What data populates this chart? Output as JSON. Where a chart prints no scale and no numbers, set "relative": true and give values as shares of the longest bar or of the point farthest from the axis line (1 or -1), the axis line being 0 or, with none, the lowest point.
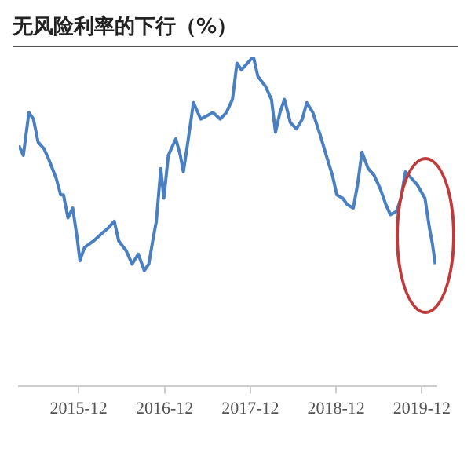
{
  "chart_data": {
    "type": "line",
    "title": "无风险利率的下行（%）",
    "relative": true,
    "x": [
      "2015-03-22",
      "2015-04-10",
      "2015-05-04",
      "2015-05-23",
      "2015-06-12",
      "2015-07-07",
      "2015-07-26",
      "2015-08-28",
      "2015-09-16",
      "2015-09-28",
      "2015-10-17",
      "2015-11-06",
      "2015-11-25",
      "2015-12-07",
      "2015-12-26",
      "2016-02-03",
      "2016-03-05",
      "2016-04-06",
      "2016-05-01",
      "2016-05-20",
      "2016-06-21",
      "2016-07-16",
      "2016-08-11",
      "2016-09-06",
      "2016-09-25",
      "2016-10-14",
      "2016-10-27",
      "2016-11-15",
      "2016-11-28",
      "2016-12-17",
      "2017-01-18",
      "2017-02-06",
      "2017-02-19",
      "2017-03-08",
      "2017-04-03",
      "2017-05-04",
      "2017-05-30",
      "2017-06-25",
      "2017-07-26",
      "2017-08-21",
      "2017-09-16",
      "2017-10-05",
      "2017-10-24",
      "2017-11-19",
      "2017-12-14",
      "2018-01-02",
      "2018-02-03",
      "2018-03-01",
      "2018-03-18",
      "2018-04-06",
      "2018-04-25",
      "2018-05-20",
      "2018-06-15",
      "2018-07-10",
      "2018-07-29",
      "2018-08-24",
      "2018-09-25",
      "2018-10-20",
      "2018-11-15",
      "2018-12-04",
      "2018-12-29",
      "2019-01-18",
      "2019-02-12",
      "2019-03-02",
      "2019-03-21",
      "2019-04-16",
      "2019-05-11",
      "2019-06-06",
      "2019-07-01",
      "2019-07-20",
      "2019-08-15",
      "2019-09-03",
      "2019-09-22",
      "2019-10-18",
      "2019-11-12",
      "2019-12-14",
      "2020-01-02",
      "2020-01-15",
      "2020-01-27"
    ],
    "series": [
      {
        "color": "#4a7fc1",
        "values": [
          0.73,
          0.7,
          0.83,
          0.81,
          0.74,
          0.72,
          0.69,
          0.63,
          0.58,
          0.58,
          0.51,
          0.54,
          0.45,
          0.38,
          0.42,
          0.44,
          0.46,
          0.48,
          0.5,
          0.44,
          0.41,
          0.37,
          0.4,
          0.35,
          0.37,
          0.45,
          0.5,
          0.66,
          0.57,
          0.7,
          0.75,
          0.7,
          0.65,
          0.73,
          0.86,
          0.81,
          0.82,
          0.83,
          0.81,
          0.83,
          0.87,
          0.98,
          0.96,
          0.98,
          1.0,
          0.94,
          0.91,
          0.87,
          0.77,
          0.83,
          0.87,
          0.8,
          0.78,
          0.81,
          0.86,
          0.83,
          0.76,
          0.7,
          0.64,
          0.58,
          0.57,
          0.55,
          0.54,
          0.61,
          0.71,
          0.66,
          0.64,
          0.6,
          0.55,
          0.52,
          0.53,
          0.57,
          0.65,
          0.63,
          0.61,
          0.57,
          0.48,
          0.43,
          0.37
        ]
      }
    ],
    "xlim": [
      "2015-03-22",
      "2020-02-01"
    ],
    "xticks": [
      {
        "value": "2015-12-01",
        "label": "2015-12"
      },
      {
        "value": "2016-12-01",
        "label": "2016-12"
      },
      {
        "value": "2017-12-01",
        "label": "2017-12"
      },
      {
        "value": "2018-12-01",
        "label": "2018-12"
      },
      {
        "value": "2019-12-01",
        "label": "2019-12"
      }
    ]
  }
}
